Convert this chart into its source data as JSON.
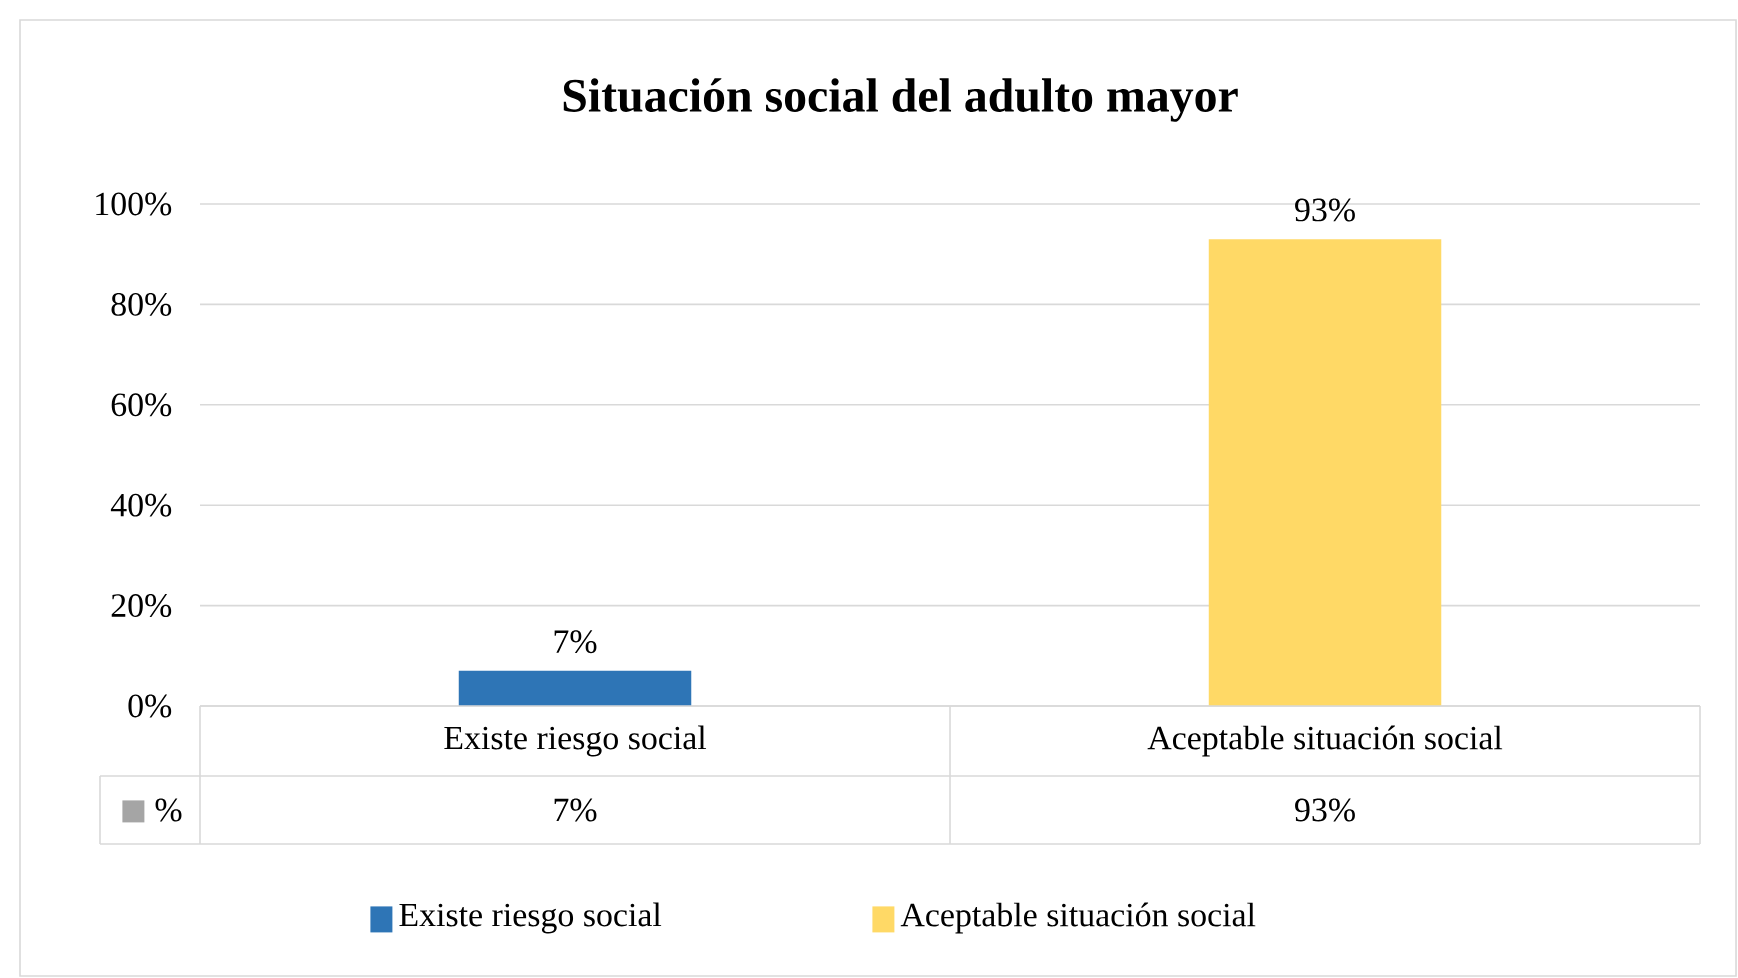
{
  "chart_data": {
    "type": "bar",
    "title": "Situación social del adulto mayor",
    "categories": [
      "Existe riesgo social",
      "Aceptable situación social"
    ],
    "series": [
      {
        "name": "%",
        "color": "#a5a5a5",
        "colors": [
          "#2e75b6",
          "#ffd966"
        ],
        "values": [
          7,
          93
        ],
        "value_labels": [
          "7%",
          "93%"
        ]
      }
    ],
    "ylim": [
      0,
      100
    ],
    "yticks": [
      {
        "value": 0,
        "label": "0%"
      },
      {
        "value": 20,
        "label": "20%"
      },
      {
        "value": 40,
        "label": "40%"
      },
      {
        "value": 60,
        "label": "60%"
      },
      {
        "value": 80,
        "label": "80%"
      },
      {
        "value": 100,
        "label": "100%"
      }
    ],
    "grid": "y",
    "legend": "bottom"
  }
}
